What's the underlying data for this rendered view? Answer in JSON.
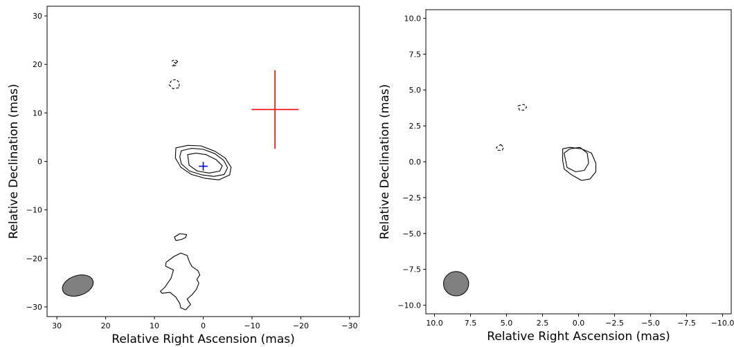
{
  "chart_data": [
    {
      "type": "contour",
      "xlabel": "Relative Right Ascension (mas)",
      "ylabel": "Relative Declination (mas)",
      "xlim": [
        32,
        -32
      ],
      "ylim": [
        -32,
        32
      ],
      "xticks": [
        30,
        20,
        10,
        0,
        -10,
        -20,
        -30
      ],
      "yticks": [
        -30,
        -20,
        -10,
        0,
        10,
        20,
        30
      ],
      "xtick_labels": [
        "30",
        "20",
        "10",
        "0",
        "−10",
        "−20",
        "−30"
      ],
      "ytick_labels": [
        "−30",
        "−20",
        "−10",
        "0",
        "10",
        "20",
        "30"
      ],
      "contours": [
        {
          "style": "solid",
          "points": [
            [
              5.6,
              2.8
            ],
            [
              3.2,
              3.3
            ],
            [
              0.5,
              3.2
            ],
            [
              -2.4,
              2.1
            ],
            [
              -4.5,
              0.7
            ],
            [
              -5.7,
              -1.2
            ],
            [
              -5.4,
              -2.8
            ],
            [
              -3.2,
              -3.8
            ],
            [
              -0.5,
              -3.5
            ],
            [
              2.4,
              -2.7
            ],
            [
              4.6,
              -1.2
            ],
            [
              5.7,
              0.7
            ]
          ]
        },
        {
          "style": "solid",
          "points": [
            [
              4.5,
              2.2
            ],
            [
              2.4,
              2.7
            ],
            [
              0.0,
              2.5
            ],
            [
              -2.4,
              1.6
            ],
            [
              -4.2,
              0.2
            ],
            [
              -5.0,
              -1.3
            ],
            [
              -4.3,
              -2.7
            ],
            [
              -2.2,
              -3.1
            ],
            [
              0.2,
              -2.8
            ],
            [
              2.8,
              -2.0
            ],
            [
              4.5,
              -0.5
            ],
            [
              4.8,
              1.0
            ]
          ]
        },
        {
          "style": "solid",
          "points": [
            [
              3.2,
              1.4
            ],
            [
              1.5,
              1.7
            ],
            [
              -0.6,
              1.4
            ],
            [
              -2.6,
              0.4
            ],
            [
              -3.9,
              -0.9
            ],
            [
              -3.4,
              -2.0
            ],
            [
              -1.2,
              -2.4
            ],
            [
              1.2,
              -2.0
            ],
            [
              2.9,
              -0.8
            ]
          ]
        },
        {
          "style": "solid",
          "points": [
            [
              3.4,
              -15.1
            ],
            [
              4.8,
              -14.9
            ],
            [
              5.9,
              -15.6
            ],
            [
              5.6,
              -16.3
            ],
            [
              4.5,
              -16.1
            ],
            [
              3.6,
              -15.7
            ]
          ]
        },
        {
          "style": "solid",
          "points": [
            [
              2.8,
              -20.8
            ],
            [
              3.3,
              -19.4
            ],
            [
              4.6,
              -18.9
            ],
            [
              6.0,
              -19.6
            ],
            [
              7.6,
              -20.8
            ],
            [
              7.7,
              -21.6
            ],
            [
              6.1,
              -22.4
            ],
            [
              6.6,
              -24.1
            ],
            [
              7.9,
              -26.0
            ],
            [
              8.8,
              -26.8
            ],
            [
              8.4,
              -27.2
            ],
            [
              6.8,
              -27.0
            ],
            [
              5.6,
              -28.0
            ],
            [
              4.8,
              -29.3
            ],
            [
              4.6,
              -30.2
            ],
            [
              3.6,
              -30.6
            ],
            [
              2.6,
              -29.5
            ],
            [
              3.3,
              -28.4
            ],
            [
              2.3,
              -27.5
            ],
            [
              1.4,
              -26.4
            ],
            [
              0.9,
              -25.1
            ],
            [
              1.3,
              -24.3
            ],
            [
              0.7,
              -23.4
            ],
            [
              1.1,
              -22.5
            ],
            [
              2.3,
              -21.7
            ]
          ]
        },
        {
          "style": "dashed",
          "points": [
            [
              5.0,
              15.2
            ],
            [
              6.2,
              15.0
            ],
            [
              7.0,
              15.8
            ],
            [
              6.5,
              16.7
            ],
            [
              5.5,
              16.9
            ],
            [
              4.9,
              16.2
            ]
          ]
        },
        {
          "style": "dashed",
          "points": [
            [
              5.2,
              20.6
            ],
            [
              5.8,
              21.0
            ],
            [
              6.4,
              20.7
            ],
            [
              5.7,
              20.3
            ],
            [
              5.5,
              19.8
            ],
            [
              6.4,
              19.6
            ]
          ]
        }
      ],
      "beam": {
        "x": 25.7,
        "y": -25.6,
        "major_axis": 6.5,
        "minor_axis": 4.1,
        "position_angle_deg": -18,
        "fill": "#808080"
      },
      "markers": [
        {
          "x": -14.7,
          "y": 10.7,
          "x_halfwidth": 4.8,
          "y_halfwidth": 8.1,
          "color": "#ff0000"
        },
        {
          "x": 0.0,
          "y": -1.0,
          "x_halfwidth": 0.9,
          "y_halfwidth": 0.9,
          "color": "#0000ff"
        }
      ]
    },
    {
      "type": "contour",
      "xlabel": "Relative Right Ascension (mas)",
      "ylabel": "Relative Declination (mas)",
      "xlim": [
        10.6,
        -10.6
      ],
      "ylim": [
        -10.6,
        10.6
      ],
      "xticks": [
        10,
        7.5,
        5,
        2.5,
        0,
        -2.5,
        -5,
        -7.5,
        -10
      ],
      "yticks": [
        -10,
        -7.5,
        -5,
        -2.5,
        0,
        2.5,
        5,
        7.5,
        10
      ],
      "xtick_labels": [
        "10.0",
        "7.5",
        "5.0",
        "2.5",
        "0.0",
        "−2.5",
        "−5.0",
        "−7.5",
        "−10.0"
      ],
      "ytick_labels": [
        "−10.0",
        "−7.5",
        "−5.0",
        "−2.5",
        "0.0",
        "2.5",
        "5.0",
        "7.5",
        "10.0"
      ],
      "contours": [
        {
          "style": "solid",
          "points": [
            [
              1.0,
              0.6
            ],
            [
              0.6,
              0.9
            ],
            [
              -0.1,
              1.0
            ],
            [
              -0.6,
              0.6
            ],
            [
              -0.7,
              -0.1
            ],
            [
              -0.4,
              -0.6
            ],
            [
              0.2,
              -0.7
            ],
            [
              0.8,
              -0.4
            ]
          ]
        },
        {
          "style": "solid",
          "points": [
            [
              1.1,
              0.7
            ],
            [
              1.1,
              0.9
            ],
            [
              0.6,
              1.0
            ],
            [
              -0.2,
              0.9
            ],
            [
              -0.9,
              0.6
            ],
            [
              -1.2,
              -0.1
            ],
            [
              -1.2,
              -0.7
            ],
            [
              -0.8,
              -1.2
            ],
            [
              -0.2,
              -1.3
            ],
            [
              0.5,
              -0.9
            ],
            [
              1.0,
              -0.5
            ],
            [
              1.1,
              0.1
            ]
          ]
        },
        {
          "style": "dashed",
          "points": [
            [
              4.2,
              3.9
            ],
            [
              3.8,
              4.0
            ],
            [
              3.6,
              3.8
            ],
            [
              3.8,
              3.6
            ],
            [
              4.1,
              3.6
            ]
          ]
        },
        {
          "style": "dashed",
          "points": [
            [
              5.4,
              1.2
            ],
            [
              5.2,
              1.0
            ],
            [
              5.3,
              0.8
            ],
            [
              5.6,
              0.8
            ],
            [
              5.7,
              1.0
            ]
          ]
        }
      ],
      "beam": {
        "x": 8.5,
        "y": -8.5,
        "major_axis": 1.75,
        "minor_axis": 1.7,
        "position_angle_deg": 0,
        "fill": "#808080"
      },
      "markers": []
    }
  ]
}
